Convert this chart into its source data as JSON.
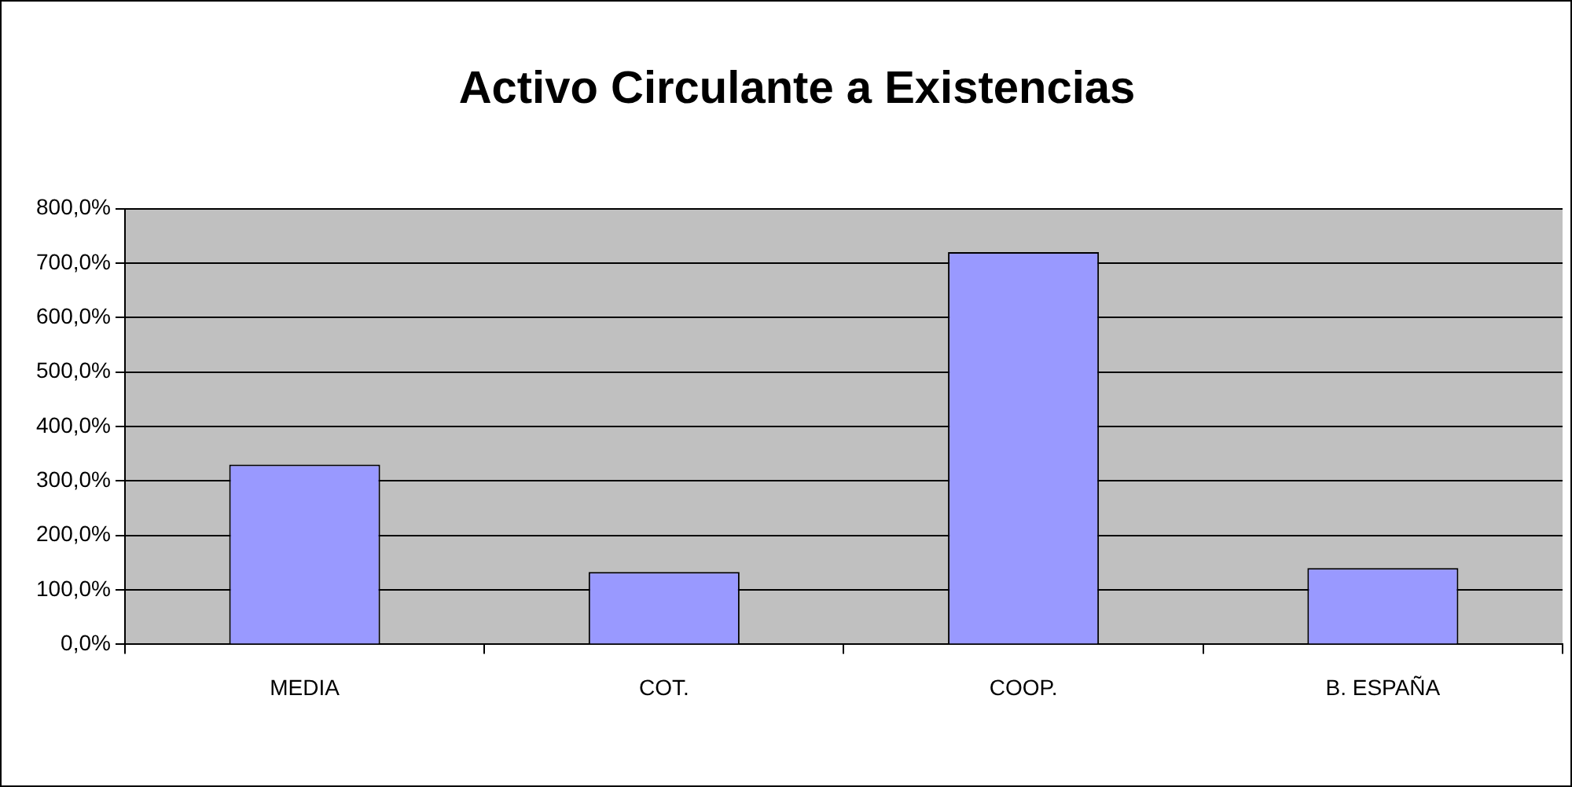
{
  "chart_data": {
    "type": "bar",
    "title": "Activo Circulante a Existencias",
    "categories": [
      "MEDIA",
      "COT.",
      "COOP.",
      "B. ESPAÑA"
    ],
    "values": [
      330,
      133,
      720,
      140
    ],
    "color": "#9999ff",
    "ylim": [
      0,
      800
    ],
    "yticks": [
      {
        "value": 0,
        "label": "0,0%"
      },
      {
        "value": 100,
        "label": "100,0%"
      },
      {
        "value": 200,
        "label": "200,0%"
      },
      {
        "value": 300,
        "label": "300,0%"
      },
      {
        "value": 400,
        "label": "400,0%"
      },
      {
        "value": 500,
        "label": "500,0%"
      },
      {
        "value": 600,
        "label": "600,0%"
      },
      {
        "value": 700,
        "label": "700,0%"
      },
      {
        "value": 800,
        "label": "800,0%"
      }
    ],
    "grid": "y",
    "legend": false
  }
}
